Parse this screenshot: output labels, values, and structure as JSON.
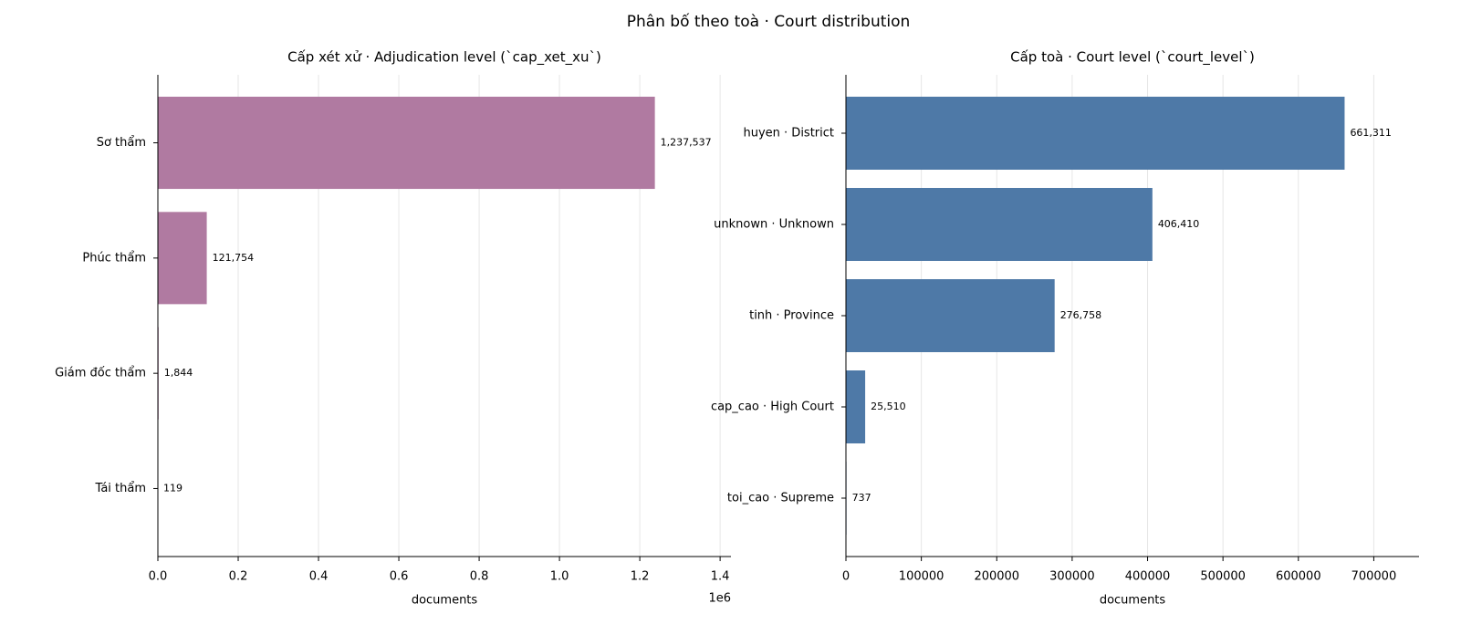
{
  "title": "Phân bố theo toà · Court distribution",
  "chart_data": [
    {
      "type": "barh",
      "title": "Cấp xét xử · Adjudication level (`cap_xet_xu`)",
      "categories": [
        "Sơ thẩm",
        "Phúc thẩm",
        "Giám đốc thẩm",
        "Tái thẩm"
      ],
      "values": [
        1237537,
        121754,
        1844,
        119
      ],
      "value_labels": [
        "1,237,537",
        "121,754",
        "1,844",
        "119"
      ],
      "color": "#b07aa1",
      "xlabel": "documents",
      "xlim": [
        0,
        1427000
      ],
      "xticks": [
        {
          "value": 0,
          "label": "0.0"
        },
        {
          "value": 200000,
          "label": "0.2"
        },
        {
          "value": 400000,
          "label": "0.4"
        },
        {
          "value": 600000,
          "label": "0.6"
        },
        {
          "value": 800000,
          "label": "0.8"
        },
        {
          "value": 1000000,
          "label": "1.0"
        },
        {
          "value": 1200000,
          "label": "1.2"
        },
        {
          "value": 1400000,
          "label": "1.4"
        }
      ],
      "x_offset_label": "1e6",
      "grid": true
    },
    {
      "type": "barh",
      "title": "Cấp toà · Court level (`court_level`)",
      "categories": [
        "huyen · District",
        "unknown · Unknown",
        "tinh · Province",
        "cap_cao · High Court",
        "toi_cao · Supreme"
      ],
      "values": [
        661311,
        406410,
        276758,
        25510,
        737
      ],
      "value_labels": [
        "661,311",
        "406,410",
        "276,758",
        "25,510",
        "737"
      ],
      "color": "#4e79a7",
      "xlabel": "documents",
      "xlim": [
        0,
        760000
      ],
      "xticks": [
        0,
        100000,
        200000,
        300000,
        400000,
        500000,
        600000,
        700000
      ],
      "grid": true
    }
  ]
}
